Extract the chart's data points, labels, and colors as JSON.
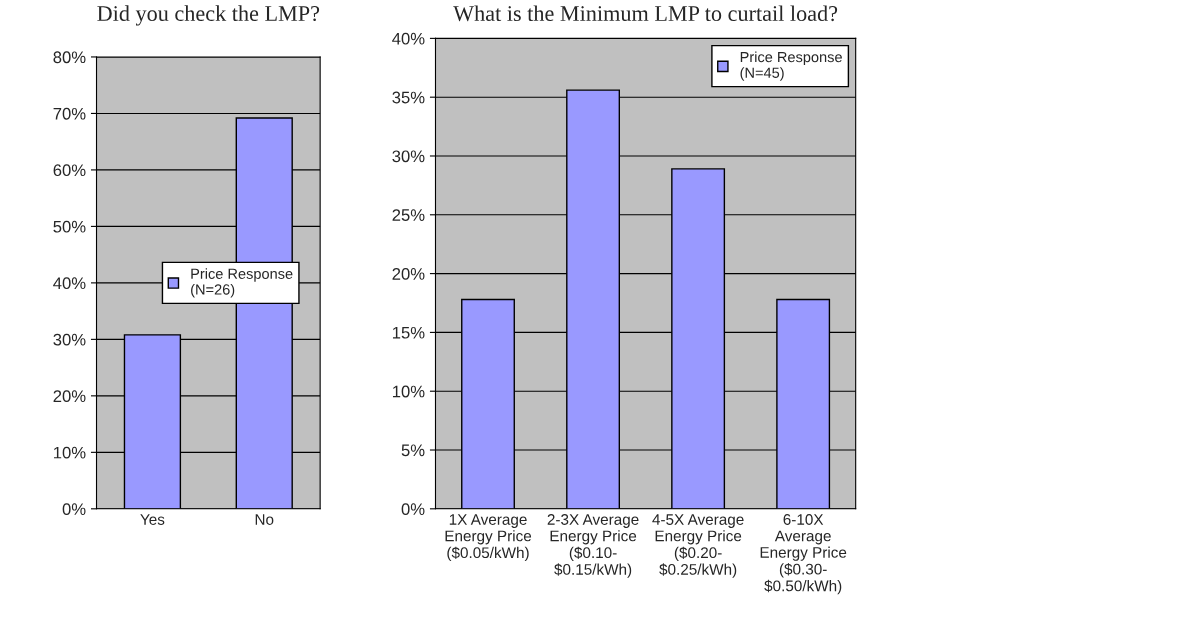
{
  "chart_data": [
    {
      "type": "bar",
      "title": "Did you check the LMP?",
      "categories": [
        "Yes",
        "No"
      ],
      "series": [
        {
          "name": "Price Response\n(N=26)",
          "color": "#9999ff",
          "values": [
            30.8,
            69.2
          ]
        }
      ],
      "ylim": [
        0,
        80
      ],
      "yticks": [
        {
          "value": 0,
          "label": "0%"
        },
        {
          "value": 10,
          "label": "10%"
        },
        {
          "value": 20,
          "label": "20%"
        },
        {
          "value": 30,
          "label": "30%"
        },
        {
          "value": 40,
          "label": "40%"
        },
        {
          "value": 50,
          "label": "50%"
        },
        {
          "value": 60,
          "label": "60%"
        },
        {
          "value": 70,
          "label": "70%"
        },
        {
          "value": 80,
          "label": "80%"
        }
      ],
      "grid": "y",
      "legend": "center"
    },
    {
      "type": "bar",
      "title": "What is the Minimum LMP to curtail load?",
      "categories": [
        "1X Average\nEnergy Price\n($0.05/kWh)",
        "2-3X Average\nEnergy Price\n($0.10-\n$0.15/kWh)",
        "4-5X Average\nEnergy Price\n($0.20-\n$0.25/kWh)",
        "6-10X\nAverage\nEnergy Price\n($0.30-\n$0.50/kWh)"
      ],
      "series": [
        {
          "name": "Price Response\n(N=45)",
          "color": "#9999ff",
          "values": [
            17.8,
            35.6,
            28.9,
            17.8
          ]
        }
      ],
      "ylim": [
        0,
        40
      ],
      "yticks": [
        {
          "value": 0,
          "label": "0%"
        },
        {
          "value": 5,
          "label": "5%"
        },
        {
          "value": 10,
          "label": "10%"
        },
        {
          "value": 15,
          "label": "15%"
        },
        {
          "value": 20,
          "label": "20%"
        },
        {
          "value": 25,
          "label": "25%"
        },
        {
          "value": 30,
          "label": "30%"
        },
        {
          "value": 35,
          "label": "35%"
        },
        {
          "value": 40,
          "label": "40%"
        }
      ],
      "grid": "y",
      "legend": "top right"
    }
  ]
}
